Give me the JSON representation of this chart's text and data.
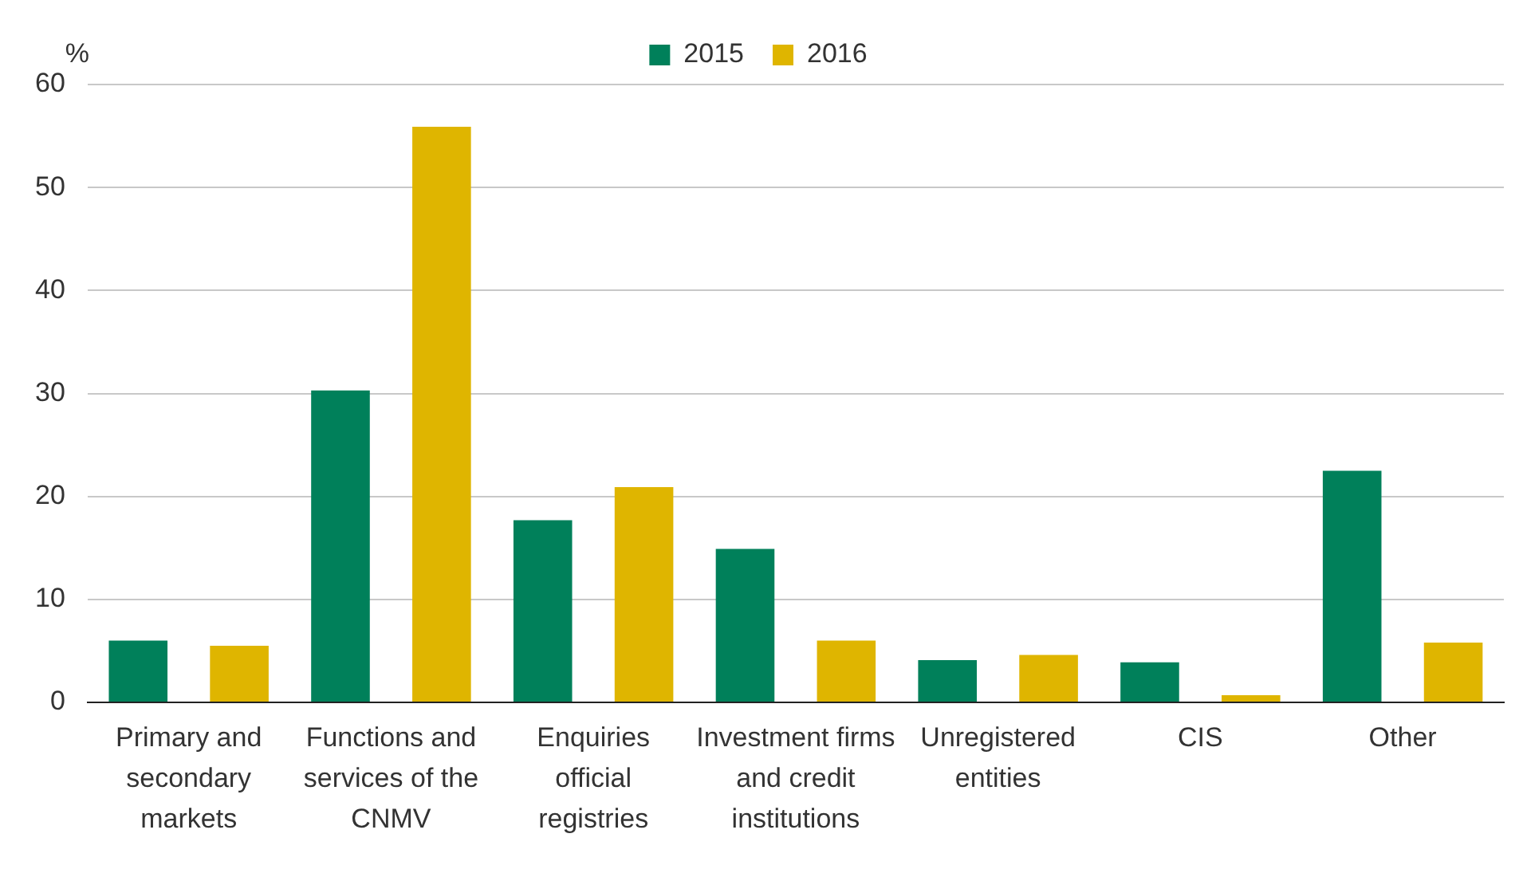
{
  "chart_data": {
    "type": "bar",
    "ylabel": "%",
    "categories": [
      "Primary and secondary markets",
      "Functions and services of the CNMV",
      "Enquiries official registries",
      "Investment firms and credit institutions",
      "Unregistered entities",
      "CIS",
      "Other"
    ],
    "series": [
      {
        "name": "2015",
        "color": "#00805a",
        "values": [
          6.0,
          30.3,
          17.7,
          14.9,
          4.1,
          3.9,
          22.5
        ]
      },
      {
        "name": "2016",
        "color": "#dfb500",
        "values": [
          5.5,
          55.9,
          20.9,
          6.0,
          4.6,
          0.7,
          5.8
        ]
      }
    ],
    "ylim": [
      0,
      60
    ],
    "yticks": [
      0,
      10,
      20,
      30,
      40,
      50,
      60
    ],
    "grid": "y",
    "legend": "top"
  }
}
